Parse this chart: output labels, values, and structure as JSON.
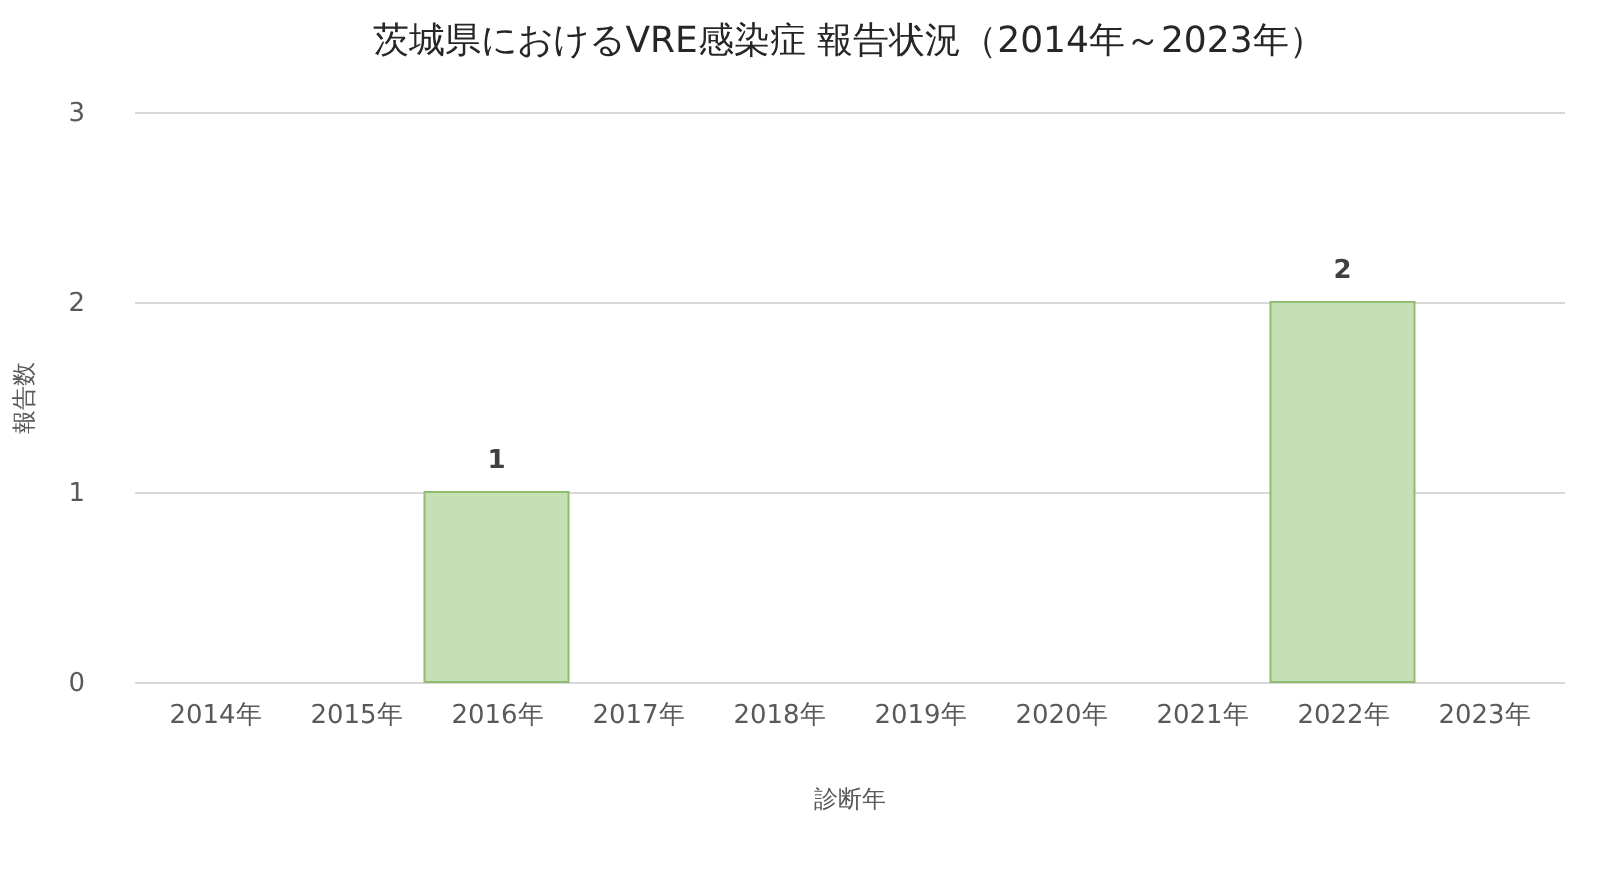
{
  "chart_data": {
    "type": "bar",
    "title": "茨城県におけるVRE感染症 報告状況（2014年～2023年）",
    "xlabel": "診断年",
    "ylabel": "報告数",
    "categories": [
      "2014年",
      "2015年",
      "2016年",
      "2017年",
      "2018年",
      "2019年",
      "2020年",
      "2021年",
      "2022年",
      "2023年"
    ],
    "values": [
      0,
      0,
      1,
      0,
      0,
      0,
      0,
      0,
      2,
      0
    ],
    "value_labels": [
      null,
      null,
      "1",
      null,
      null,
      null,
      null,
      null,
      "2",
      null
    ],
    "color": "#c5e0b4",
    "ylim": [
      0,
      3
    ],
    "yticks": [
      0,
      1,
      2,
      3
    ],
    "grid": "y"
  }
}
